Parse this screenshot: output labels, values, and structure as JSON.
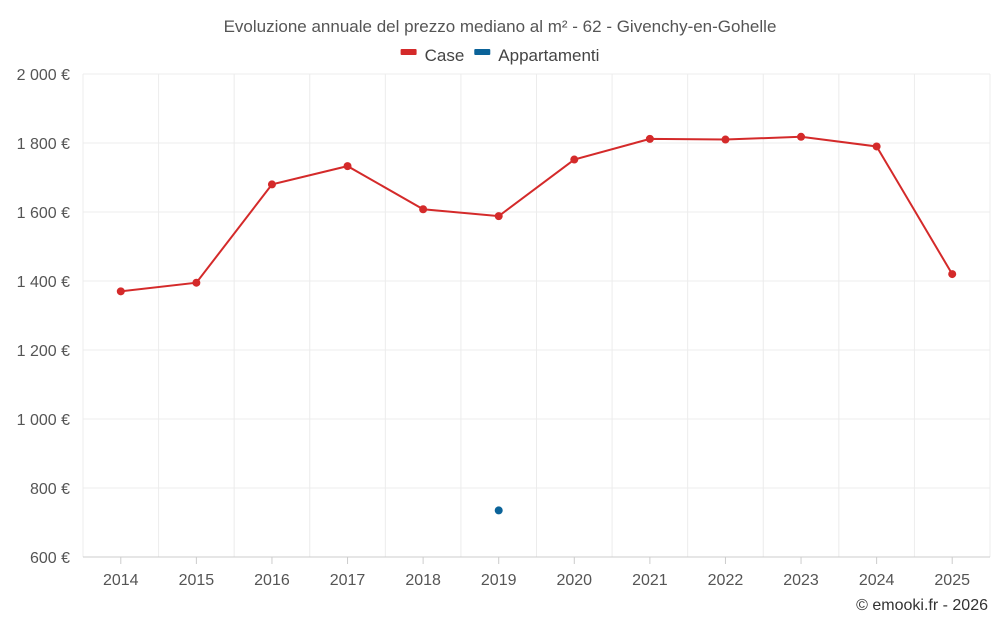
{
  "chart_data": {
    "type": "line",
    "title": "Evoluzione annuale del prezzo mediano al m² - 62 - Givenchy-en-Gohelle",
    "categories": [
      "2014",
      "2015",
      "2016",
      "2017",
      "2018",
      "2019",
      "2020",
      "2021",
      "2022",
      "2023",
      "2024",
      "2025"
    ],
    "series": [
      {
        "name": "Case",
        "color": "#d42a2a",
        "values": [
          1370,
          1395,
          1680,
          1733,
          1608,
          1588,
          1752,
          1812,
          1810,
          1818,
          1790,
          1420
        ]
      },
      {
        "name": "Appartamenti",
        "color": "#0b6399",
        "values": [
          null,
          null,
          null,
          null,
          null,
          735,
          null,
          null,
          null,
          null,
          null,
          null
        ]
      }
    ],
    "ylim": [
      600,
      2000
    ],
    "yticks": [
      600,
      800,
      1000,
      1200,
      1400,
      1600,
      1800,
      2000
    ],
    "ytick_labels": [
      "600 €",
      "800 €",
      "1 000 €",
      "1 200 €",
      "1 400 €",
      "1 600 €",
      "1 800 €",
      "2 000 €"
    ],
    "xlabel": "",
    "ylabel": "",
    "grid": true,
    "legend_position": "top-center"
  },
  "credit": "© emooki.fr - 2026"
}
